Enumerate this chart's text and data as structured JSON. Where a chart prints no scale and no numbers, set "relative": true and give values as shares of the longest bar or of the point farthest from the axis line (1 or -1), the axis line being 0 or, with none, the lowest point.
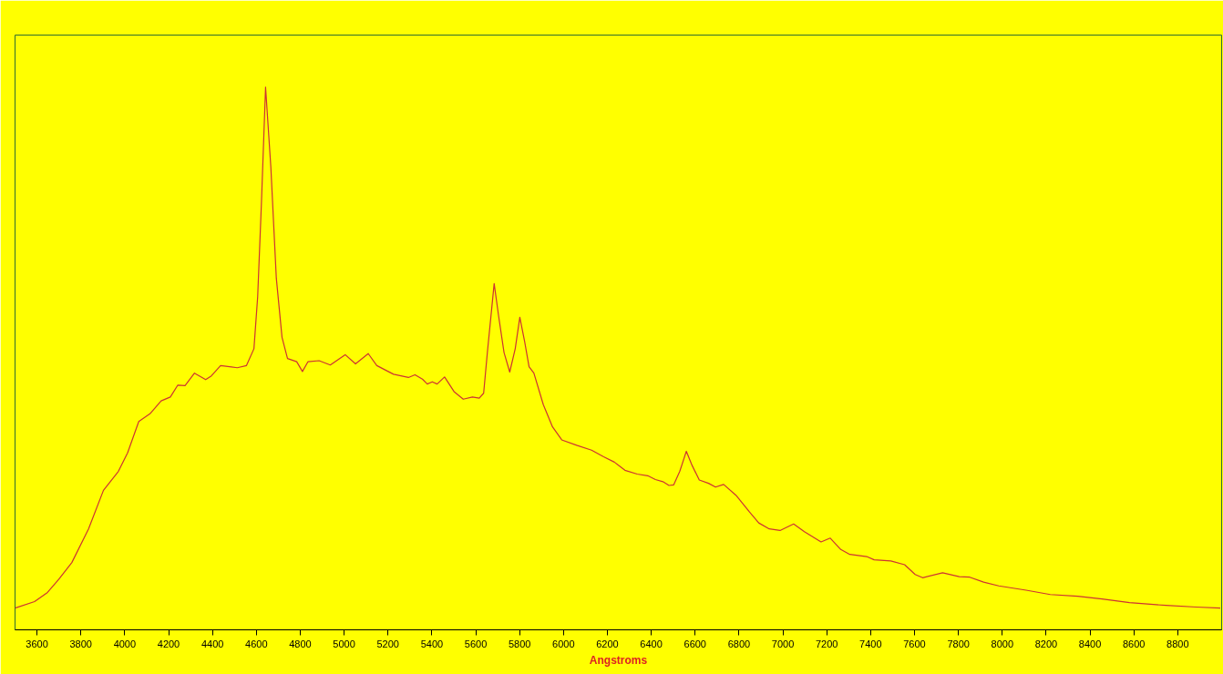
{
  "chart_data": {
    "type": "line",
    "xlabel": "Angstroms",
    "relative": true,
    "xlim": [
      3500,
      9000
    ],
    "xticks": [
      3600,
      3800,
      4000,
      4200,
      4400,
      4600,
      4800,
      5000,
      5200,
      5400,
      5600,
      5800,
      6000,
      6200,
      6400,
      6600,
      6800,
      7000,
      7200,
      7400,
      7600,
      7800,
      8000,
      8200,
      8400,
      8600,
      8800
    ],
    "x": [
      3500,
      3589,
      3648,
      3699,
      3759,
      3835,
      3903,
      3971,
      4013,
      4064,
      4115,
      4166,
      4208,
      4242,
      4275,
      4318,
      4369,
      4395,
      4437,
      4513,
      4555,
      4589,
      4606,
      4623,
      4642,
      4666,
      4691,
      4717,
      4742,
      4784,
      4810,
      4835,
      4886,
      4937,
      5005,
      5052,
      5110,
      5149,
      5225,
      5293,
      5323,
      5357,
      5379,
      5402,
      5424,
      5458,
      5501,
      5543,
      5585,
      5616,
      5636,
      5653,
      5684,
      5704,
      5729,
      5755,
      5780,
      5801,
      5823,
      5843,
      5865,
      5908,
      5950,
      5992,
      6060,
      6128,
      6183,
      6232,
      6280,
      6336,
      6384,
      6419,
      6453,
      6481,
      6502,
      6530,
      6560,
      6585,
      6619,
      6661,
      6693,
      6730,
      6786,
      6848,
      6890,
      6938,
      6987,
      7049,
      7098,
      7174,
      7216,
      7264,
      7305,
      7382,
      7416,
      7492,
      7555,
      7603,
      7637,
      7728,
      7804,
      7852,
      7915,
      7984,
      8109,
      8219,
      8344,
      8455,
      8580,
      8746,
      8884,
      8994
    ],
    "series": [
      {
        "color": "#cc3333",
        "values": [
          0.04,
          0.052,
          0.069,
          0.093,
          0.124,
          0.186,
          0.257,
          0.292,
          0.326,
          0.384,
          0.398,
          0.422,
          0.429,
          0.451,
          0.45,
          0.473,
          0.461,
          0.468,
          0.487,
          0.483,
          0.487,
          0.518,
          0.614,
          0.785,
          1.0,
          0.853,
          0.648,
          0.539,
          0.5,
          0.494,
          0.476,
          0.494,
          0.496,
          0.488,
          0.507,
          0.49,
          0.509,
          0.487,
          0.471,
          0.465,
          0.47,
          0.462,
          0.453,
          0.457,
          0.453,
          0.466,
          0.439,
          0.425,
          0.429,
          0.427,
          0.436,
          0.511,
          0.638,
          0.579,
          0.511,
          0.475,
          0.518,
          0.576,
          0.531,
          0.485,
          0.473,
          0.415,
          0.374,
          0.35,
          0.34,
          0.331,
          0.319,
          0.309,
          0.294,
          0.287,
          0.284,
          0.277,
          0.273,
          0.266,
          0.267,
          0.292,
          0.329,
          0.304,
          0.276,
          0.27,
          0.263,
          0.268,
          0.248,
          0.217,
          0.197,
          0.186,
          0.183,
          0.195,
          0.181,
          0.162,
          0.169,
          0.148,
          0.139,
          0.135,
          0.129,
          0.127,
          0.12,
          0.102,
          0.096,
          0.105,
          0.098,
          0.097,
          0.088,
          0.081,
          0.073,
          0.065,
          0.062,
          0.057,
          0.05,
          0.045,
          0.042,
          0.04
        ]
      }
    ]
  }
}
